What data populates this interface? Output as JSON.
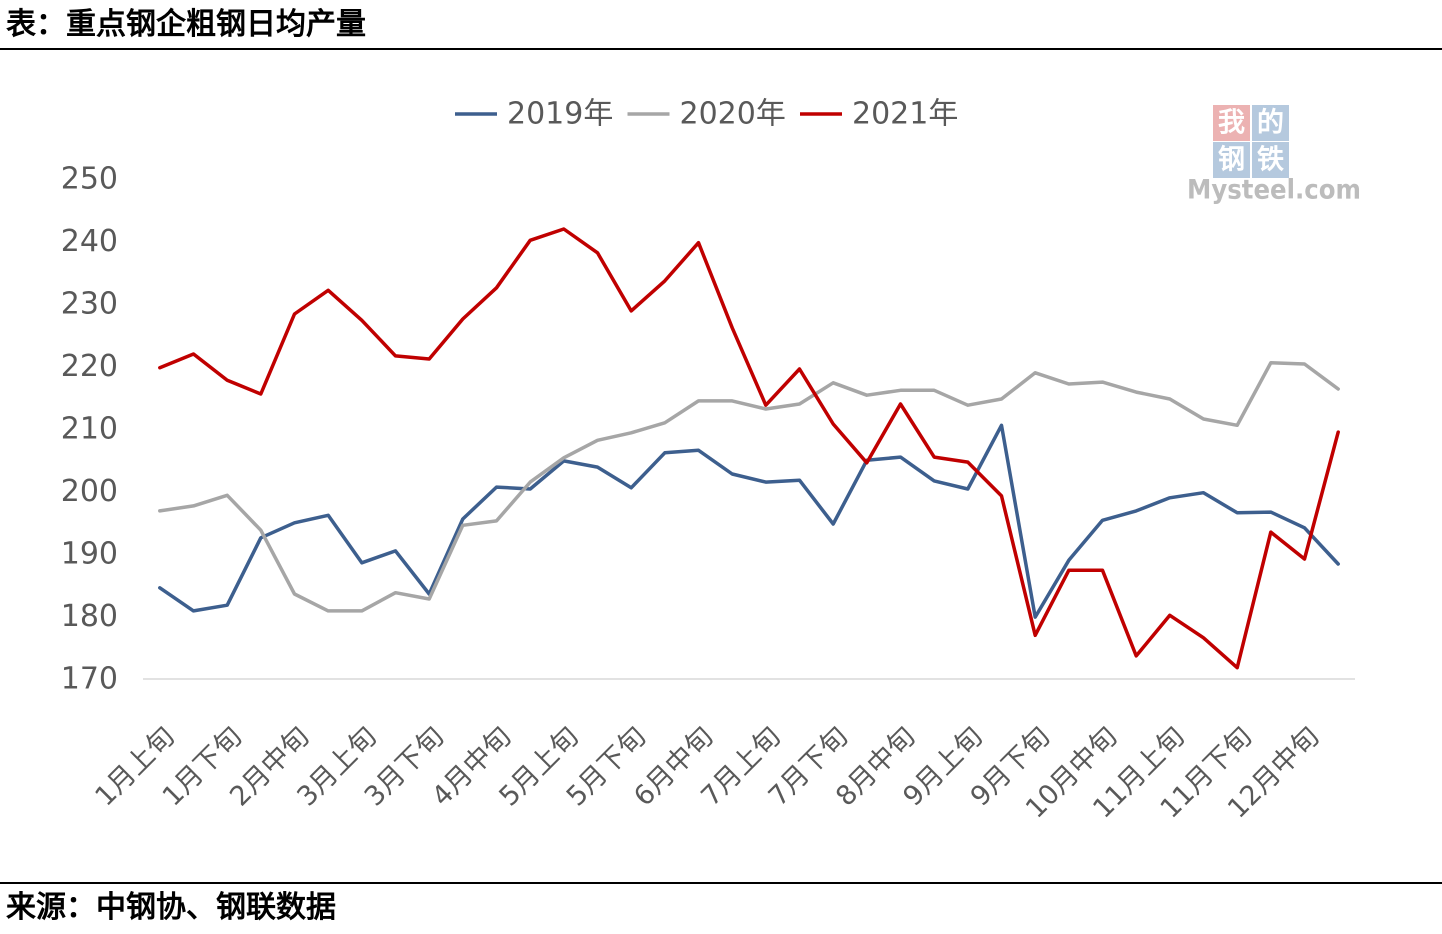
{
  "source": "来源：中钢协、钢联数据",
  "watermark": {
    "chars": [
      "我",
      "的",
      "钢",
      "铁"
    ],
    "site": "Mysteel.com"
  },
  "chart_data": {
    "type": "line",
    "title": "表：重点钢企粗钢日均产量",
    "xlabel": "",
    "ylabel": "",
    "ylim": [
      170,
      250
    ],
    "yticks": [
      170,
      180,
      190,
      200,
      210,
      220,
      230,
      240,
      250
    ],
    "grid": false,
    "legend": "top-center",
    "categories": [
      "1月上旬",
      "",
      "1月下旬",
      "",
      "2月中旬",
      "",
      "3月上旬",
      "",
      "3月下旬",
      "",
      "4月中旬",
      "",
      "5月上旬",
      "",
      "5月下旬",
      "",
      "6月中旬",
      "",
      "7月上旬",
      "",
      "7月下旬",
      "",
      "8月中旬",
      "",
      "9月上旬",
      "",
      "9月下旬",
      "",
      "10月中旬",
      "",
      "11月上旬",
      "",
      "11月下旬",
      "",
      "12月中旬",
      ""
    ],
    "series": [
      {
        "name": "2019年",
        "color": "#3d5f8e",
        "values": [
          184.6,
          180.9,
          181.8,
          192.6,
          195.0,
          196.2,
          188.6,
          190.5,
          183.6,
          195.6,
          200.7,
          200.4,
          204.9,
          203.9,
          200.6,
          206.2,
          206.6,
          202.8,
          201.5,
          201.8,
          194.8,
          205.0,
          205.5,
          201.7,
          200.4,
          210.6,
          179.9,
          189.0,
          195.4,
          196.9,
          199.0,
          199.8,
          196.6,
          196.7,
          194.2,
          188.4
        ]
      },
      {
        "name": "2020年",
        "color": "#a6a6a6",
        "values": [
          196.9,
          197.7,
          199.4,
          193.8,
          183.6,
          180.9,
          180.9,
          183.8,
          182.8,
          194.6,
          195.3,
          201.5,
          205.4,
          208.2,
          209.4,
          211.0,
          214.5,
          214.5,
          213.2,
          214.0,
          217.4,
          215.4,
          216.2,
          216.2,
          213.8,
          214.8,
          219.0,
          217.2,
          217.5,
          215.9,
          214.8,
          211.6,
          210.6,
          220.6,
          220.4,
          216.4
        ]
      },
      {
        "name": "2021年",
        "color": "#c00000",
        "values": [
          219.8,
          222.0,
          217.8,
          215.6,
          228.4,
          232.2,
          227.4,
          221.7,
          221.2,
          227.6,
          232.6,
          240.2,
          242.0,
          238.2,
          228.9,
          233.7,
          239.8,
          226.2,
          213.8,
          219.6,
          210.8,
          204.6,
          214.0,
          205.5,
          204.7,
          199.3,
          177.0,
          187.4,
          187.4,
          173.7,
          180.2,
          176.6,
          171.8,
          193.5,
          189.2,
          209.5
        ]
      }
    ]
  }
}
